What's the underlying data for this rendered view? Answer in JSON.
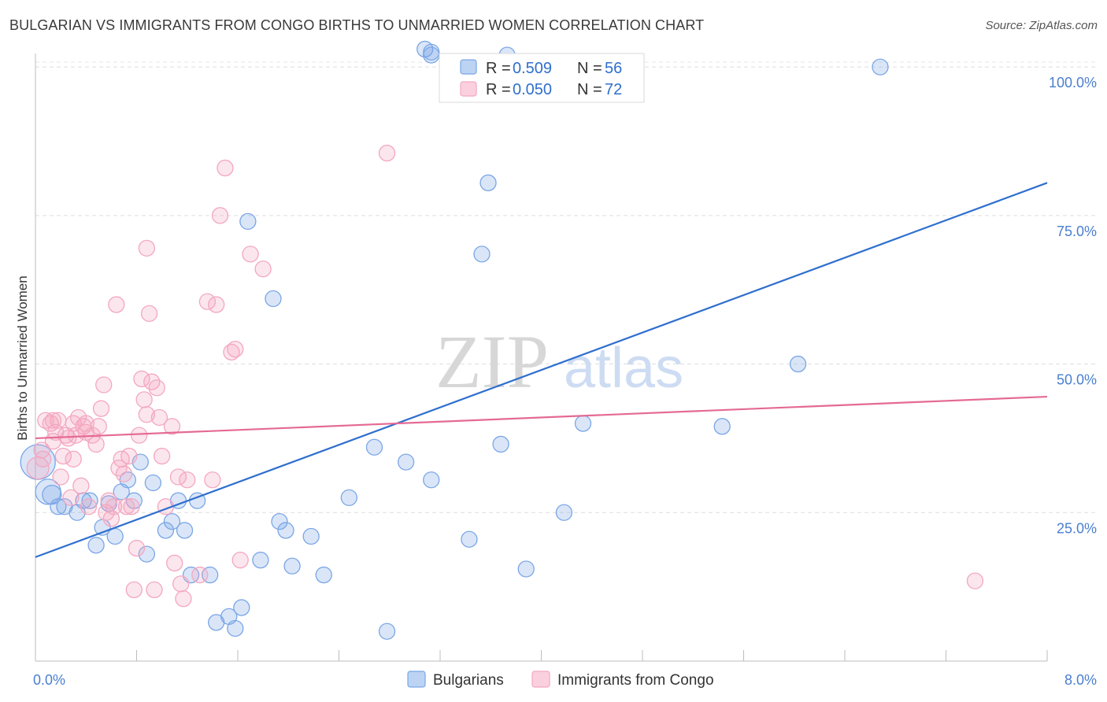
{
  "chart_data": {
    "type": "scatter",
    "title": "BULGARIAN VS IMMIGRANTS FROM CONGO BIRTHS TO UNMARRIED WOMEN CORRELATION CHART",
    "source": "Source: ZipAtlas.com",
    "xlabel": "",
    "ylabel": "Births to Unmarried Women",
    "xlim": [
      0,
      8
    ],
    "ylim": [
      0,
      102
    ],
    "x_tick_labels": [
      {
        "value": 0,
        "label": "0.0%"
      },
      {
        "value": 8,
        "label": "8.0%"
      }
    ],
    "y_tick_labels": [
      {
        "value": 25,
        "label": "25.0%"
      },
      {
        "value": 50,
        "label": "50.0%"
      },
      {
        "value": 75,
        "label": "75.0%"
      },
      {
        "value": 100,
        "label": "100.0%"
      }
    ],
    "grid": true,
    "watermark": {
      "zip": "ZIP",
      "atlas": "atlas"
    },
    "legend_top": [
      {
        "series": "Bulgarians",
        "r_label": "R =",
        "r_value": "0.509",
        "n_label": "N =",
        "n_value": "56"
      },
      {
        "series": "Immigrants from Congo",
        "r_label": "R =",
        "r_value": "0.050",
        "n_label": "N =",
        "n_value": "72"
      }
    ],
    "series": [
      {
        "name": "Bulgarians",
        "color": "#7aa6e6",
        "line_color": "#2f6fce",
        "trend": {
          "x0": 0,
          "y0": 17.5,
          "x1": 8,
          "y1": 80.5
        },
        "points": [
          [
            0.02,
            33.5,
            22
          ],
          [
            0.1,
            28.5,
            16
          ],
          [
            0.13,
            28.0,
            12
          ],
          [
            0.18,
            26.0,
            10
          ],
          [
            0.23,
            26.0,
            10
          ],
          [
            0.33,
            25.0,
            10
          ],
          [
            0.38,
            27.0,
            10
          ],
          [
            0.43,
            27.0,
            10
          ],
          [
            0.48,
            19.5,
            10
          ],
          [
            0.53,
            22.5,
            10
          ],
          [
            0.58,
            26.5,
            10
          ],
          [
            0.63,
            21.0,
            10
          ],
          [
            0.68,
            28.5,
            10
          ],
          [
            0.73,
            30.5,
            10
          ],
          [
            0.78,
            27.0,
            10
          ],
          [
            0.83,
            33.5,
            10
          ],
          [
            0.88,
            18.0,
            10
          ],
          [
            0.93,
            30.0,
            10
          ],
          [
            1.03,
            22.0,
            10
          ],
          [
            1.08,
            23.5,
            10
          ],
          [
            1.13,
            27.0,
            10
          ],
          [
            1.18,
            22.0,
            10
          ],
          [
            1.23,
            14.5,
            10
          ],
          [
            1.28,
            27.0,
            10
          ],
          [
            1.38,
            14.5,
            10
          ],
          [
            1.43,
            6.5,
            10
          ],
          [
            1.53,
            7.5,
            10
          ],
          [
            1.58,
            5.5,
            10
          ],
          [
            1.63,
            9.0,
            10
          ],
          [
            1.68,
            74.0,
            10
          ],
          [
            1.78,
            17.0,
            10
          ],
          [
            1.88,
            61.0,
            10
          ],
          [
            1.93,
            23.5,
            10
          ],
          [
            1.98,
            22.0,
            10
          ],
          [
            2.03,
            16.0,
            10
          ],
          [
            2.18,
            21.0,
            10
          ],
          [
            2.28,
            14.5,
            10
          ],
          [
            2.48,
            27.5,
            10
          ],
          [
            2.68,
            36.0,
            10
          ],
          [
            2.78,
            5.0,
            10
          ],
          [
            2.93,
            33.5,
            10
          ],
          [
            3.13,
            30.5,
            10
          ],
          [
            3.08,
            103.0,
            10
          ],
          [
            3.13,
            102.0,
            10
          ],
          [
            3.13,
            102.5,
            10
          ],
          [
            3.43,
            20.5,
            10
          ],
          [
            3.53,
            68.5,
            10
          ],
          [
            3.58,
            80.5,
            10
          ],
          [
            3.68,
            36.5,
            10
          ],
          [
            3.73,
            102.0,
            10
          ],
          [
            3.88,
            15.5,
            10
          ],
          [
            4.18,
            25.0,
            10
          ],
          [
            4.33,
            40.0,
            10
          ],
          [
            5.43,
            39.5,
            10
          ],
          [
            6.03,
            50.0,
            10
          ],
          [
            6.68,
            100.0,
            10
          ]
        ]
      },
      {
        "name": "Immigrants from Congo",
        "color": "#f3a7c0",
        "line_color": "#e46a94",
        "trend": {
          "x0": 0,
          "y0": 37.5,
          "x1": 8,
          "y1": 44.5
        },
        "points": [
          [
            0.02,
            32.5,
            14
          ],
          [
            0.05,
            35.5,
            10
          ],
          [
            0.08,
            40.5,
            10
          ],
          [
            0.12,
            40.0,
            10
          ],
          [
            0.14,
            37.0,
            10
          ],
          [
            0.16,
            38.5,
            10
          ],
          [
            0.18,
            40.5,
            10
          ],
          [
            0.2,
            31.0,
            10
          ],
          [
            0.22,
            34.5,
            10
          ],
          [
            0.24,
            38.0,
            10
          ],
          [
            0.26,
            37.5,
            10
          ],
          [
            0.28,
            27.5,
            10
          ],
          [
            0.3,
            34.0,
            10
          ],
          [
            0.32,
            38.0,
            10
          ],
          [
            0.34,
            41.0,
            10
          ],
          [
            0.36,
            29.5,
            10
          ],
          [
            0.38,
            39.5,
            10
          ],
          [
            0.4,
            38.5,
            10
          ],
          [
            0.42,
            26.0,
            10
          ],
          [
            0.45,
            38.0,
            10
          ],
          [
            0.48,
            36.5,
            10
          ],
          [
            0.5,
            39.5,
            10
          ],
          [
            0.52,
            42.5,
            10
          ],
          [
            0.54,
            46.5,
            10
          ],
          [
            0.56,
            25.0,
            10
          ],
          [
            0.58,
            27.0,
            10
          ],
          [
            0.6,
            24.0,
            10
          ],
          [
            0.62,
            26.0,
            10
          ],
          [
            0.64,
            60.0,
            10
          ],
          [
            0.66,
            32.5,
            10
          ],
          [
            0.68,
            34.0,
            10
          ],
          [
            0.7,
            31.5,
            10
          ],
          [
            0.72,
            26.0,
            10
          ],
          [
            0.74,
            34.5,
            10
          ],
          [
            0.76,
            26.0,
            10
          ],
          [
            0.78,
            12.0,
            10
          ],
          [
            0.8,
            19.0,
            10
          ],
          [
            0.82,
            38.0,
            10
          ],
          [
            0.84,
            47.5,
            10
          ],
          [
            0.86,
            44.0,
            10
          ],
          [
            0.88,
            41.5,
            10
          ],
          [
            0.9,
            58.5,
            10
          ],
          [
            0.92,
            47.0,
            10
          ],
          [
            0.94,
            12.0,
            10
          ],
          [
            0.96,
            46.0,
            10
          ],
          [
            0.98,
            41.0,
            10
          ],
          [
            1.0,
            34.5,
            10
          ],
          [
            1.03,
            26.0,
            10
          ],
          [
            1.08,
            39.5,
            10
          ],
          [
            1.1,
            16.5,
            10
          ],
          [
            1.13,
            31.0,
            10
          ],
          [
            1.15,
            13.0,
            10
          ],
          [
            1.17,
            10.5,
            10
          ],
          [
            1.2,
            30.5,
            10
          ],
          [
            1.3,
            14.5,
            10
          ],
          [
            1.36,
            60.5,
            10
          ],
          [
            1.4,
            30.5,
            10
          ],
          [
            1.43,
            60.0,
            10
          ],
          [
            1.46,
            75.0,
            10
          ],
          [
            1.5,
            83.0,
            10
          ],
          [
            1.55,
            52.0,
            10
          ],
          [
            1.58,
            52.5,
            10
          ],
          [
            1.62,
            17.0,
            10
          ],
          [
            1.7,
            68.5,
            10
          ],
          [
            1.8,
            66.0,
            10
          ],
          [
            0.88,
            69.5,
            10
          ],
          [
            0.4,
            40.0,
            10
          ],
          [
            0.14,
            40.5,
            10
          ],
          [
            0.3,
            40.0,
            10
          ],
          [
            2.78,
            85.5,
            10
          ],
          [
            7.43,
            13.5,
            10
          ],
          [
            0.06,
            34.0,
            10
          ]
        ]
      }
    ]
  }
}
